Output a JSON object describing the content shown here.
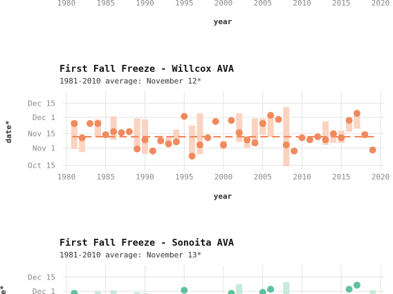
{
  "chart_data": [
    {
      "type": "scatter",
      "title": "",
      "subtitle": "",
      "xlabel": "year",
      "ylabel": "",
      "xlim": [
        1979.5,
        2020.5
      ],
      "xticks": [
        "1980",
        "1985",
        "1990",
        "1995",
        "2000",
        "2005",
        "2010",
        "2015",
        "2020"
      ],
      "color": "#f08a5d",
      "points": []
    },
    {
      "type": "scatter",
      "title": "First Fall Freeze - Willcox AVA",
      "subtitle": "1981-2010 average: November 12*",
      "xlabel": "year",
      "ylabel": "date*",
      "xlim": [
        1979.5,
        2020.5
      ],
      "ylim": [
        "Oct 14",
        "Dec 20"
      ],
      "xticks": [
        "1980",
        "1985",
        "1990",
        "1995",
        "2000",
        "2005",
        "2010",
        "2015",
        "2020"
      ],
      "yticks": [
        "Oct 15",
        "Nov 1",
        "Nov 15",
        "Dec 1",
        "Dec 15"
      ],
      "average": "Nov 12",
      "point_color": "#f08a5d",
      "bar_color": "#fbd3c0",
      "years": [
        1981,
        1982,
        1983,
        1984,
        1985,
        1986,
        1987,
        1988,
        1989,
        1990,
        1991,
        1992,
        1993,
        1994,
        1995,
        1996,
        1997,
        1998,
        1999,
        2000,
        2001,
        2002,
        2003,
        2004,
        2005,
        2006,
        2007,
        2008,
        2009,
        2010,
        2011,
        2012,
        2013,
        2014,
        2015,
        2016,
        2017,
        2018,
        2019
      ],
      "dates": [
        "Nov 25",
        "Nov 11",
        "Nov 25",
        "Nov 25",
        "Nov 14",
        "Nov 17",
        "Nov 16",
        "Nov 17",
        "Oct 31",
        "Nov 9",
        "Oct 29",
        "Nov 8",
        "Nov 5",
        "Nov 7",
        "Dec 2",
        "Oct 24",
        "Nov 4",
        "Nov 11",
        "Nov 27",
        "Nov 4",
        "Nov 28",
        "Nov 16",
        "Nov 9",
        "Nov 6",
        "Nov 25",
        "Dec 3",
        "Nov 29",
        "Nov 4",
        "Oct 29",
        "Nov 11",
        "Nov 9",
        "Nov 12",
        "Nov 9",
        "Nov 15",
        "Nov 11",
        "Nov 28",
        "Dec 5",
        "Nov 14",
        "Oct 30"
      ],
      "bars": [
        [
          1981,
          "Oct 31",
          "Nov 28"
        ],
        [
          1982,
          "Oct 28",
          "Nov 11"
        ],
        [
          1984,
          "Nov 12",
          "Nov 29"
        ],
        [
          1986,
          "Nov 9",
          "Dec 2"
        ],
        [
          1989,
          "Oct 29",
          "Nov 30"
        ],
        [
          1990,
          "Oct 26",
          "Nov 29"
        ],
        [
          1992,
          "Nov 5",
          "Nov 13"
        ],
        [
          1993,
          "Nov 3",
          "Nov 11"
        ],
        [
          1994,
          "Nov 6",
          "Nov 19"
        ],
        [
          1996,
          "Oct 24",
          "Nov 23"
        ],
        [
          1997,
          "Oct 26",
          "Dec 5"
        ],
        [
          2000,
          "Oct 31",
          "Nov 8"
        ],
        [
          2002,
          "Nov 7",
          "Dec 5"
        ],
        [
          2003,
          "Nov 1",
          "Nov 12"
        ],
        [
          2004,
          "Nov 3",
          "Nov 30"
        ],
        [
          2005,
          "Nov 14",
          "Nov 30"
        ],
        [
          2006,
          "Nov 12",
          "Dec 1"
        ],
        [
          2008,
          "Oct 14",
          "Dec 11"
        ],
        [
          2013,
          "Nov 4",
          "Nov 27"
        ],
        [
          2014,
          "Nov 6",
          "Nov 17"
        ],
        [
          2015,
          "Nov 6",
          "Nov 18"
        ],
        [
          2016,
          "Nov 17",
          "Dec 1"
        ],
        [
          2017,
          "Nov 20",
          "Dec 7"
        ],
        [
          2018,
          "Nov 13",
          "Nov 17"
        ],
        [
          2019,
          "Oct 28",
          "Nov 2"
        ]
      ]
    },
    {
      "type": "scatter",
      "title": "First Fall Freeze - Sonoita AVA",
      "subtitle": "1981-2010 average: November 13*",
      "xlabel": "",
      "ylabel": "",
      "ylim": [
        "Oct 14",
        "Dec 20"
      ],
      "yticks": [
        "Dec 1",
        "Dec 15"
      ],
      "point_color": "#5ec19b",
      "bar_color": "#c6ead8",
      "visible_points": [
        [
          1981,
          "Nov 29"
        ],
        [
          1995,
          "Dec 2"
        ],
        [
          2001,
          "Nov 29"
        ],
        [
          2005,
          "Nov 30"
        ],
        [
          2006,
          "Dec 3"
        ],
        [
          2016,
          "Dec 3"
        ],
        [
          2017,
          "Dec 7"
        ]
      ],
      "visible_bars": [
        [
          1984,
          "Nov 28",
          "Dec 1"
        ],
        [
          1986,
          "Nov 25",
          "Dec 2"
        ],
        [
          1989,
          "Nov 20",
          "Nov 30"
        ],
        [
          1990,
          "Nov 20",
          "Nov 29"
        ],
        [
          2002,
          "Nov 20",
          "Dec 8"
        ],
        [
          2008,
          "Nov 20",
          "Dec 10"
        ],
        [
          2019,
          "Nov 20",
          "Dec 2"
        ]
      ]
    }
  ]
}
